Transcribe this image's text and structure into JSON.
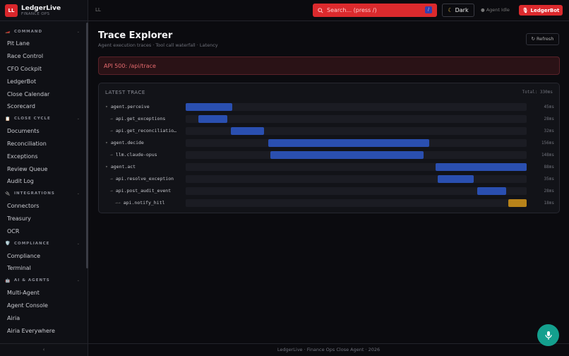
{
  "brand": {
    "logo": "LL",
    "name": "LedgerLive",
    "subtitle": "FINANCE OPS"
  },
  "sidebar": {
    "sections": [
      {
        "title": "COMMAND",
        "icon": "🏎️",
        "items": [
          "Pit Lane",
          "Race Control",
          "CFO Cockpit",
          "LedgerBot",
          "Close Calendar",
          "Scorecard"
        ]
      },
      {
        "title": "CLOSE CYCLE",
        "icon": "📋",
        "items": [
          "Documents",
          "Reconciliation",
          "Exceptions",
          "Review Queue",
          "Audit Log"
        ]
      },
      {
        "title": "INTEGRATIONS",
        "icon": "🔌",
        "items": [
          "Connectors",
          "Treasury",
          "OCR"
        ]
      },
      {
        "title": "COMPLIANCE",
        "icon": "🛡️",
        "items": [
          "Compliance",
          "Terminal"
        ]
      },
      {
        "title": "AI & AGENTS",
        "icon": "🤖",
        "items": [
          "Multi-Agent",
          "Agent Console",
          "Airia",
          "Airia Everywhere"
        ]
      }
    ],
    "collapse": "‹"
  },
  "topbar": {
    "breadcrumb": "LL",
    "search_placeholder": "Search... (press /)",
    "search_kbd": "/",
    "theme_label": "Dark",
    "agent_status": "● Agent Idle",
    "ledgerbot_label": "LedgerBot"
  },
  "page": {
    "title": "Trace Explorer",
    "subtitle": "Agent execution traces · Tool call waterfall · Latency",
    "refresh_label": "↻ Refresh",
    "error": "API 500: /api/trace"
  },
  "trace": {
    "title": "LATEST TRACE",
    "total_label": "Total: 330ms",
    "total_ms": 330,
    "colors": {
      "span": "#2a4fb0",
      "hitl": "#b8831a"
    },
    "spans": [
      {
        "prefix": "▾",
        "name": "agent.perceive",
        "start": 0,
        "duration": 45,
        "label": "45ms",
        "color": "span",
        "depth": 0
      },
      {
        "prefix": "→",
        "name": "api.get_exceptions",
        "start": 12,
        "duration": 28,
        "label": "28ms",
        "color": "span",
        "depth": 1
      },
      {
        "prefix": "→",
        "name": "api.get_reconciliatio…",
        "start": 44,
        "duration": 32,
        "label": "32ms",
        "color": "span",
        "depth": 1
      },
      {
        "prefix": "▾",
        "name": "agent.decide",
        "start": 80,
        "duration": 156,
        "label": "156ms",
        "color": "span",
        "depth": 0
      },
      {
        "prefix": "→",
        "name": "llm.claude-opus",
        "start": 82,
        "duration": 148,
        "label": "148ms",
        "color": "span",
        "depth": 1
      },
      {
        "prefix": "▾",
        "name": "agent.act",
        "start": 242,
        "duration": 88,
        "label": "88ms",
        "color": "span",
        "depth": 0
      },
      {
        "prefix": "→",
        "name": "api.resolve_exception",
        "start": 244,
        "duration": 35,
        "label": "35ms",
        "color": "span",
        "depth": 1
      },
      {
        "prefix": "→",
        "name": "api.post_audit_event",
        "start": 282,
        "duration": 28,
        "label": "28ms",
        "color": "span",
        "depth": 1
      },
      {
        "prefix": "→→",
        "name": "api.notify_hitl",
        "start": 312,
        "duration": 18,
        "label": "18ms",
        "color": "hitl",
        "depth": 2
      }
    ]
  },
  "footer": "LedgerLive · Finance Ops Close Agent · 2026"
}
